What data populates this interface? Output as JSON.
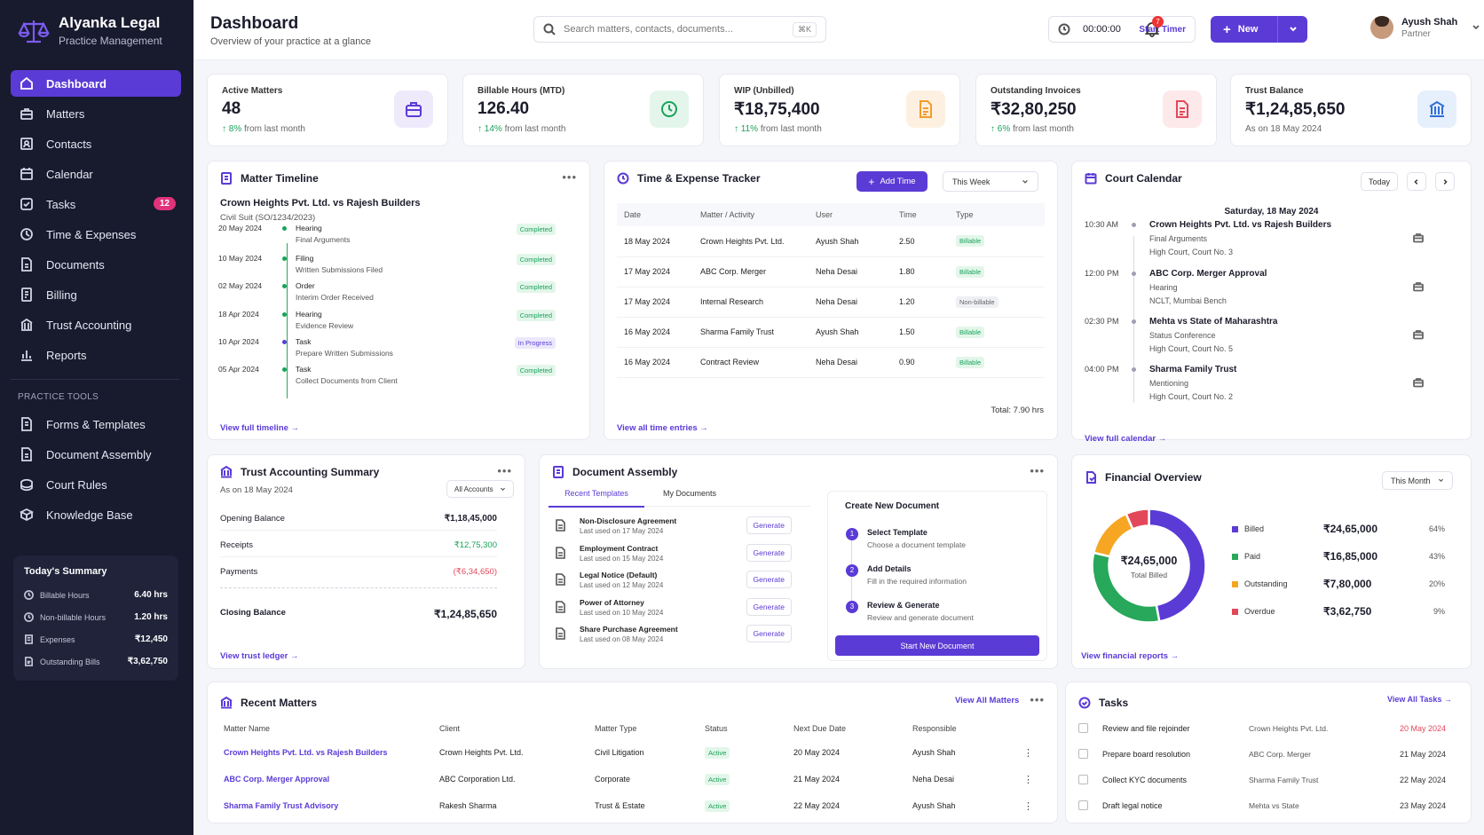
{
  "brand": {
    "name": "Alyanka Legal",
    "sub": "Practice Management"
  },
  "nav": {
    "items": [
      {
        "label": "Dashboard",
        "icon": "home-icon"
      },
      {
        "label": "Matters",
        "icon": "briefcase-icon"
      },
      {
        "label": "Contacts",
        "icon": "contacts-icon"
      },
      {
        "label": "Calendar",
        "icon": "calendar-icon"
      },
      {
        "label": "Tasks",
        "icon": "checkbox-icon",
        "badge": "12"
      },
      {
        "label": "Time & Expenses",
        "icon": "clock-icon"
      },
      {
        "label": "Documents",
        "icon": "document-icon"
      },
      {
        "label": "Billing",
        "icon": "billing-icon"
      },
      {
        "label": "Trust Accounting",
        "icon": "bank-icon"
      },
      {
        "label": "Reports",
        "icon": "chart-icon"
      }
    ],
    "section": "PRACTICE TOOLS",
    "tools": [
      {
        "label": "Forms & Templates",
        "icon": "form-icon"
      },
      {
        "label": "Document Assembly",
        "icon": "assembly-icon"
      },
      {
        "label": "Court Rules",
        "icon": "court-icon"
      },
      {
        "label": "Knowledge Base",
        "icon": "book-icon"
      }
    ]
  },
  "summary": {
    "title": "Today's Summary",
    "rows": [
      {
        "label": "Billable Hours",
        "value": "6.40 hrs"
      },
      {
        "label": "Non-billable Hours",
        "value": "1.20 hrs"
      },
      {
        "label": "Expenses",
        "value": "₹12,450"
      },
      {
        "label": "Outstanding Bills",
        "value": "₹3,62,750"
      }
    ]
  },
  "header": {
    "title": "Dashboard",
    "subtitle": "Overview of your practice at a glance",
    "search_placeholder": "Search matters, contacts, documents...",
    "search_kbd": "⌘K",
    "timer": "00:00:00",
    "timer_btn": "Start Timer",
    "new_btn": "New",
    "bell_count": "7",
    "user_name": "Ayush Shah",
    "user_role": "Partner"
  },
  "stats": [
    {
      "label": "Active Matters",
      "value": "48",
      "chg": "8%",
      "chg_text": " from last month",
      "color": "#5b3bd6",
      "bg": "#eeeafc"
    },
    {
      "label": "Billable Hours (MTD)",
      "value": "126.40",
      "chg": "14%",
      "chg_text": " from last month",
      "color": "#19a25b",
      "bg": "#e4f6ec"
    },
    {
      "label": "WIP (Unbilled)",
      "value": "₹18,75,400",
      "chg": "11%",
      "chg_text": " from last month",
      "color": "#f39c2a",
      "bg": "#fdf0e1"
    },
    {
      "label": "Outstanding Invoices",
      "value": "₹32,80,250",
      "chg": "6%",
      "chg_text": " from last month",
      "color": "#e2485a",
      "bg": "#fde8ea"
    },
    {
      "label": "Trust Balance",
      "value": "₹1,24,85,650",
      "chg": "",
      "chg_text": "As on 18 May 2024",
      "color": "#2f6fd6",
      "bg": "#e6effc"
    }
  ],
  "timeline": {
    "title": "Matter Timeline",
    "matter": "Crown Heights Pvt. Ltd. vs Rajesh Builders",
    "case": "Civil Suit (SO/1234/2023)",
    "link": "View full timeline →",
    "rows": [
      {
        "date": "20 May 2024",
        "type": "Hearing",
        "desc": "Final Arguments",
        "status": "Completed"
      },
      {
        "date": "10 May 2024",
        "type": "Filing",
        "desc": "Written Submissions Filed",
        "status": "Completed"
      },
      {
        "date": "02 May 2024",
        "type": "Order",
        "desc": "Interim Order Received",
        "status": "Completed"
      },
      {
        "date": "18 Apr 2024",
        "type": "Hearing",
        "desc": "Evidence Review",
        "status": "Completed"
      },
      {
        "date": "10 Apr 2024",
        "type": "Task",
        "desc": "Prepare Written Submissions",
        "status": "In Progress"
      },
      {
        "date": "05 Apr 2024",
        "type": "Task",
        "desc": "Collect Documents from Client",
        "status": "Completed"
      }
    ]
  },
  "tracker": {
    "title": "Time & Expense Tracker",
    "add": "Add Time",
    "period": "This Week",
    "cols": [
      "Date",
      "Matter / Activity",
      "User",
      "Time",
      "Type"
    ],
    "rows": [
      {
        "date": "18 May 2024",
        "matter": "Crown Heights Pvt. Ltd.",
        "user": "Ayush Shah",
        "time": "2.50",
        "type": "Billable"
      },
      {
        "date": "17 May 2024",
        "matter": "ABC Corp. Merger",
        "user": "Neha Desai",
        "time": "1.80",
        "type": "Billable"
      },
      {
        "date": "17 May 2024",
        "matter": "Internal Research",
        "user": "Neha Desai",
        "time": "1.20",
        "type": "Non-billable"
      },
      {
        "date": "16 May 2024",
        "matter": "Sharma Family Trust",
        "user": "Ayush Shah",
        "time": "1.50",
        "type": "Billable"
      },
      {
        "date": "16 May 2024",
        "matter": "Contract Review",
        "user": "Neha Desai",
        "time": "0.90",
        "type": "Billable"
      }
    ],
    "total": "Total:  7.90 hrs",
    "link": "View all time entries →"
  },
  "calendar": {
    "title": "Court Calendar",
    "today": "Today",
    "date": "Saturday, 18 May 2024",
    "link": "View full calendar →",
    "items": [
      {
        "time": "10:30 AM",
        "title": "Crown Heights Pvt. Ltd. vs Rajesh Builders",
        "stage": "Final Arguments",
        "court": "High Court, Court No. 3"
      },
      {
        "time": "12:00 PM",
        "title": "ABC Corp. Merger Approval",
        "stage": "Hearing",
        "court": "NCLT, Mumbai Bench"
      },
      {
        "time": "02:30 PM",
        "title": "Mehta vs State of Maharashtra",
        "stage": "Status Conference",
        "court": "High Court, Court No. 5"
      },
      {
        "time": "04:00 PM",
        "title": "Sharma Family Trust",
        "stage": "Mentioning",
        "court": "High Court, Court No. 2"
      }
    ]
  },
  "trust": {
    "title": "Trust Accounting Summary",
    "asof": "As on 18 May 2024",
    "filter": "All Accounts",
    "rows": [
      {
        "label": "Opening Balance",
        "value": "₹1,18,45,000",
        "color": "#111"
      },
      {
        "label": "Receipts",
        "value": "₹12,75,300",
        "color": "#19a25b"
      },
      {
        "label": "Payments",
        "value": "(₹6,34,650)",
        "color": "#e2485a"
      }
    ],
    "closing_label": "Closing Balance",
    "closing": "₹1,24,85,650",
    "link": "View trust ledger →"
  },
  "assembly": {
    "title": "Document Assembly",
    "tabs": [
      "Recent Templates",
      "My Documents"
    ],
    "gen": "Generate",
    "templates": [
      {
        "name": "Non-Disclosure Agreement",
        "used": "Last used on 17 May 2024"
      },
      {
        "name": "Employment Contract",
        "used": "Last used on 15 May 2024"
      },
      {
        "name": "Legal Notice (Default)",
        "used": "Last used on 12 May 2024"
      },
      {
        "name": "Power of Attorney",
        "used": "Last used on 10 May 2024"
      },
      {
        "name": "Share Purchase Agreement",
        "used": "Last used on 08 May 2024"
      }
    ],
    "create_title": "Create New Document",
    "steps": [
      {
        "n": "1",
        "t": "Select Template",
        "d": "Choose a document template"
      },
      {
        "n": "2",
        "t": "Add Details",
        "d": "Fill in the required information"
      },
      {
        "n": "3",
        "t": "Review & Generate",
        "d": "Review and generate document"
      }
    ],
    "start": "Start New Document"
  },
  "finance": {
    "title": "Financial Overview",
    "period": "This Month",
    "center_value": "₹24,65,000",
    "center_label": "Total Billed",
    "link": "View financial reports →"
  },
  "chart_data": {
    "type": "pie",
    "categories": [
      "Billed",
      "Paid",
      "Outstanding",
      "Overdue"
    ],
    "values": [
      24.65,
      16.85,
      7.8,
      3.6275
    ],
    "display_values": [
      "₹24,65,000",
      "₹16,85,000",
      "₹7,80,000",
      "₹3,62,750"
    ],
    "percents": [
      "64%",
      "43%",
      "20%",
      "9%"
    ],
    "share": [
      64,
      43,
      20,
      9
    ],
    "colors": [
      "#5b3bd6",
      "#27a85a",
      "#f6a623",
      "#e2485a"
    ]
  },
  "matters": {
    "title": "Recent Matters",
    "view_all": "View All Matters",
    "cols": [
      "Matter Name",
      "Client",
      "Matter Type",
      "Status",
      "Next Due Date",
      "Responsible"
    ],
    "rows": [
      {
        "name": "Crown Heights Pvt. Ltd. vs Rajesh Builders",
        "client": "Crown Heights Pvt. Ltd.",
        "type": "Civil Litigation",
        "status": "Active",
        "due": "20 May 2024",
        "resp": "Ayush Shah"
      },
      {
        "name": "ABC Corp. Merger Approval",
        "client": "ABC Corporation Ltd.",
        "type": "Corporate",
        "status": "Active",
        "due": "21 May 2024",
        "resp": "Neha Desai"
      },
      {
        "name": "Sharma Family Trust Advisory",
        "client": "Rakesh Sharma",
        "type": "Trust & Estate",
        "status": "Active",
        "due": "22 May 2024",
        "resp": "Ayush Shah"
      }
    ]
  },
  "tasks": {
    "title": "Tasks",
    "view_all": "View All Tasks →",
    "rows": [
      {
        "task": "Review and file rejoinder",
        "client": "Crown Heights Pvt. Ltd.",
        "due": "20 May 2024",
        "color": "#e2485a"
      },
      {
        "task": "Prepare board resolution",
        "client": "ABC Corp. Merger",
        "due": "21 May 2024",
        "color": "#333"
      },
      {
        "task": "Collect KYC documents",
        "client": "Sharma Family Trust",
        "due": "22 May 2024",
        "color": "#333"
      },
      {
        "task": "Draft legal notice",
        "client": "Mehta vs State",
        "due": "23 May 2024",
        "color": "#333"
      }
    ]
  }
}
